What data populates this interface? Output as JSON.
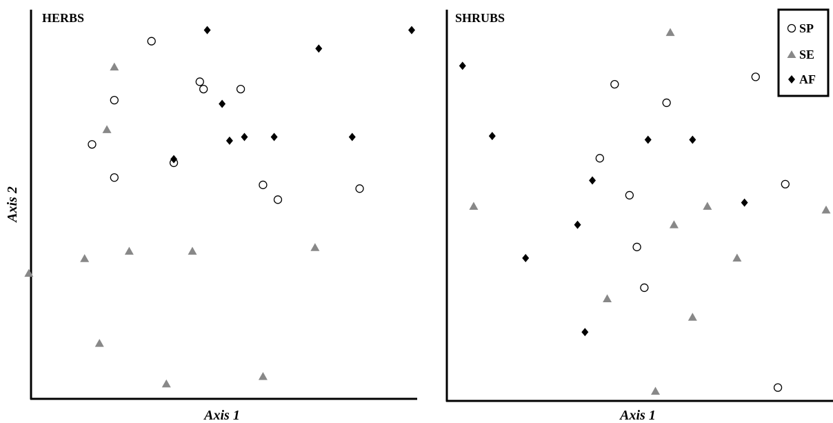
{
  "colors": {
    "SP": "#ffffff",
    "SE": "#888888",
    "AF": "#000000",
    "axis": "#000000"
  },
  "legend": {
    "placement": "top-right",
    "entries": [
      {
        "key": "SP",
        "label": "SP",
        "marker": "open-circle"
      },
      {
        "key": "SE",
        "label": "SE",
        "marker": "grey-triangle"
      },
      {
        "key": "AF",
        "label": "AF",
        "marker": "black-diamond"
      }
    ]
  },
  "chart_data": [
    {
      "type": "scatter",
      "title": "HERBS",
      "xlabel": "Axis 1",
      "ylabel": "Axis 2",
      "xlim": [
        0,
        100
      ],
      "ylim": [
        0,
        100
      ],
      "grid": false,
      "series": [
        {
          "name": "SP",
          "points": [
            [
              30,
              95
            ],
            [
              43,
              84
            ],
            [
              20,
              79
            ],
            [
              44,
              82
            ],
            [
              54,
              82
            ],
            [
              14,
              67
            ],
            [
              36,
              62
            ],
            [
              20,
              58
            ],
            [
              60,
              56
            ],
            [
              86,
              55
            ],
            [
              64,
              52
            ]
          ]
        },
        {
          "name": "SE",
          "points": [
            [
              20,
              88
            ],
            [
              18,
              71
            ],
            [
              24,
              38
            ],
            [
              12,
              36
            ],
            [
              -3,
              32
            ],
            [
              16,
              13
            ],
            [
              34,
              2
            ],
            [
              60,
              4
            ],
            [
              41,
              38
            ],
            [
              74,
              39
            ]
          ]
        },
        {
          "name": "AF",
          "points": [
            [
              45,
              98
            ],
            [
              75,
              93
            ],
            [
              100,
              98
            ],
            [
              49,
              78
            ],
            [
              51,
              68
            ],
            [
              55,
              69
            ],
            [
              63,
              69
            ],
            [
              84,
              69
            ],
            [
              36,
              63
            ]
          ]
        }
      ]
    },
    {
      "type": "scatter",
      "title": "SHRUBS",
      "xlabel": "Axis 1",
      "ylabel": "",
      "xlim": [
        0,
        100
      ],
      "ylim": [
        0,
        100
      ],
      "grid": false,
      "series": [
        {
          "name": "SP",
          "points": [
            [
              81,
              85
            ],
            [
              43,
              83
            ],
            [
              57,
              78
            ],
            [
              39,
              63
            ],
            [
              47,
              53
            ],
            [
              89,
              56
            ],
            [
              49,
              39
            ],
            [
              51,
              28
            ],
            [
              87,
              1
            ]
          ]
        },
        {
          "name": "SE",
          "points": [
            [
              58,
              97
            ],
            [
              5,
              50
            ],
            [
              68,
              50
            ],
            [
              100,
              49
            ],
            [
              59,
              45
            ],
            [
              76,
              36
            ],
            [
              41,
              25
            ],
            [
              64,
              20
            ],
            [
              54,
              0
            ]
          ]
        },
        {
          "name": "AF",
          "points": [
            [
              2,
              88
            ],
            [
              10,
              69
            ],
            [
              52,
              68
            ],
            [
              64,
              68
            ],
            [
              37,
              57
            ],
            [
              78,
              51
            ],
            [
              33,
              45
            ],
            [
              19,
              36
            ],
            [
              35,
              16
            ]
          ]
        }
      ]
    }
  ]
}
